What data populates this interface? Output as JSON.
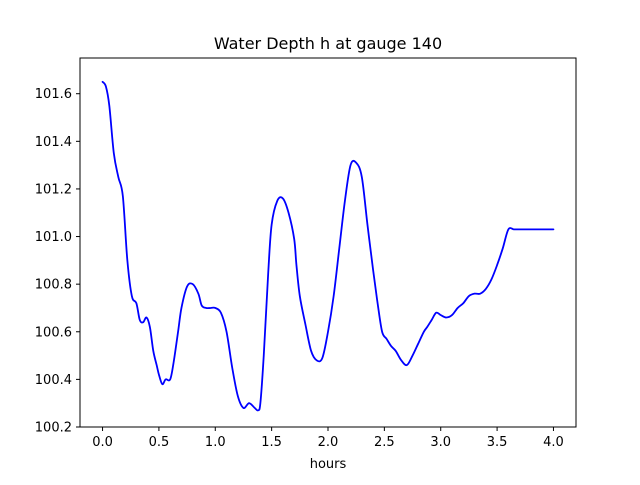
{
  "chart_data": {
    "type": "line",
    "title": "Water Depth h at gauge 140",
    "xlabel": "hours",
    "ylabel": "",
    "xlim": [
      -0.2,
      4.2
    ],
    "ylim": [
      100.2,
      101.75
    ],
    "x_ticks": [
      0.0,
      0.5,
      1.0,
      1.5,
      2.0,
      2.5,
      3.0,
      3.5,
      4.0
    ],
    "x_tick_labels": [
      "0.0",
      "0.5",
      "1.0",
      "1.5",
      "2.0",
      "2.5",
      "3.0",
      "3.5",
      "4.0"
    ],
    "y_ticks": [
      100.2,
      100.4,
      100.6,
      100.8,
      101.0,
      101.2,
      101.4,
      101.6
    ],
    "y_tick_labels": [
      "100.2",
      "100.4",
      "100.6",
      "100.8",
      "101.0",
      "101.2",
      "101.4",
      "101.6"
    ],
    "grid": false,
    "series": [
      {
        "color": "#0000ff",
        "x": [
          0.0,
          0.03,
          0.06,
          0.1,
          0.14,
          0.18,
          0.22,
          0.26,
          0.3,
          0.33,
          0.36,
          0.39,
          0.42,
          0.45,
          0.48,
          0.5,
          0.53,
          0.56,
          0.6,
          0.63,
          0.67,
          0.7,
          0.75,
          0.8,
          0.85,
          0.88,
          0.92,
          0.96,
          1.0,
          1.05,
          1.1,
          1.15,
          1.2,
          1.25,
          1.3,
          1.35,
          1.38,
          1.4,
          1.43,
          1.47,
          1.5,
          1.55,
          1.6,
          1.65,
          1.7,
          1.72,
          1.75,
          1.8,
          1.85,
          1.9,
          1.95,
          2.0,
          2.05,
          2.1,
          2.15,
          2.2,
          2.25,
          2.3,
          2.35,
          2.4,
          2.44,
          2.48,
          2.52,
          2.56,
          2.6,
          2.65,
          2.7,
          2.75,
          2.8,
          2.85,
          2.88,
          2.92,
          2.96,
          3.0,
          3.05,
          3.1,
          3.15,
          3.2,
          3.25,
          3.3,
          3.35,
          3.4,
          3.45,
          3.5,
          3.55,
          3.6,
          3.65,
          3.7,
          3.75,
          3.8,
          3.85,
          3.9,
          3.95,
          4.0
        ],
        "values": [
          101.65,
          101.63,
          101.55,
          101.35,
          101.25,
          101.17,
          100.9,
          100.75,
          100.72,
          100.65,
          100.64,
          100.66,
          100.62,
          100.52,
          100.46,
          100.42,
          100.38,
          100.4,
          100.4,
          100.47,
          100.6,
          100.7,
          100.79,
          100.8,
          100.76,
          100.71,
          100.7,
          100.7,
          100.7,
          100.68,
          100.6,
          100.45,
          100.33,
          100.28,
          100.3,
          100.28,
          100.27,
          100.3,
          100.5,
          100.85,
          101.05,
          101.15,
          101.16,
          101.1,
          100.99,
          100.88,
          100.75,
          100.63,
          100.52,
          100.48,
          100.49,
          100.6,
          100.75,
          100.95,
          101.15,
          101.3,
          101.31,
          101.25,
          101.05,
          100.86,
          100.72,
          100.6,
          100.57,
          100.54,
          100.52,
          100.48,
          100.46,
          100.5,
          100.55,
          100.6,
          100.62,
          100.65,
          100.68,
          100.67,
          100.66,
          100.67,
          100.7,
          100.72,
          100.75,
          100.76,
          100.76,
          100.78,
          100.82,
          100.88,
          100.95,
          101.03,
          101.03,
          101.03,
          101.03,
          101.03,
          101.03,
          101.03,
          101.03,
          101.03
        ]
      }
    ]
  }
}
